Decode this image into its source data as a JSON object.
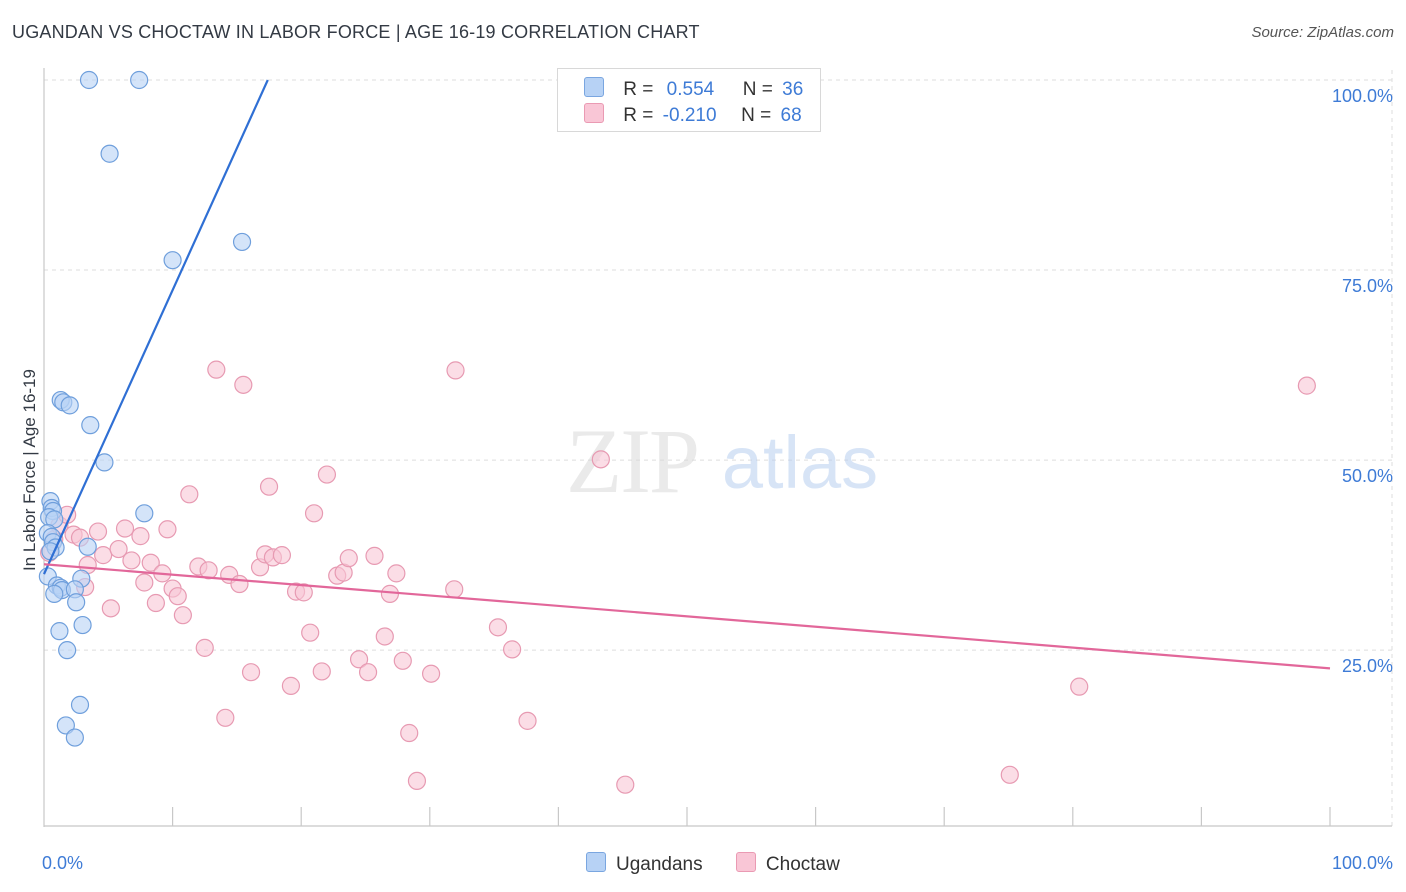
{
  "title": "UGANDAN VS CHOCTAW IN LABOR FORCE | AGE 16-19 CORRELATION CHART",
  "source": "Source: ZipAtlas.com",
  "watermark": {
    "zip": "ZIP",
    "atlas": "atlas"
  },
  "legend_top": {
    "rows": [
      {
        "r_label": "R =",
        "r_value": "0.554",
        "n_label": "N =",
        "n_value": "36"
      },
      {
        "r_label": "R =",
        "r_value": "-0.210",
        "n_label": "N =",
        "n_value": "68"
      }
    ]
  },
  "legend_bottom": [
    "Ugandans",
    "Choctaw"
  ],
  "colors": {
    "blue_fill": "#b7d2f5",
    "blue_stroke": "#6f9fdc",
    "blue_line": "#2f6fd4",
    "pink_fill": "#f9c6d6",
    "pink_stroke": "#e79ab2",
    "pink_line": "#e2679a",
    "grid": "#dddddd",
    "axis_text": "#3e7bd6"
  },
  "chart_data": {
    "type": "scatter",
    "title": "UGANDAN VS CHOCTAW IN LABOR FORCE | AGE 16-19 CORRELATION CHART",
    "xlabel": "",
    "ylabel": "In Labor Force | Age 16-19",
    "xlim": [
      0,
      100
    ],
    "ylim": [
      2,
      100
    ],
    "x_tick_labels": [
      "0.0%",
      "100.0%"
    ],
    "y_ticks": [
      25,
      50,
      75,
      100
    ],
    "y_tick_labels": [
      "25.0%",
      "50.0%",
      "75.0%",
      "100.0%"
    ],
    "series": [
      {
        "name": "Ugandans",
        "R": 0.554,
        "N": 36,
        "trend": {
          "x": [
            0.0,
            17.4
          ],
          "y": [
            35.0,
            100.0
          ]
        },
        "points": [
          [
            3.5,
            100
          ],
          [
            7.4,
            100
          ],
          [
            5.1,
            90.3
          ],
          [
            15.4,
            78.7
          ],
          [
            10.0,
            76.3
          ],
          [
            1.3,
            57.9
          ],
          [
            1.5,
            57.6
          ],
          [
            2.0,
            57.2
          ],
          [
            3.6,
            54.6
          ],
          [
            4.7,
            49.7
          ],
          [
            0.5,
            44.6
          ],
          [
            0.6,
            43.7
          ],
          [
            0.7,
            43.3
          ],
          [
            0.4,
            42.5
          ],
          [
            0.8,
            42.2
          ],
          [
            7.8,
            43.0
          ],
          [
            0.3,
            40.4
          ],
          [
            0.6,
            39.9
          ],
          [
            0.7,
            39.2
          ],
          [
            0.9,
            38.5
          ],
          [
            0.5,
            38.0
          ],
          [
            3.4,
            38.6
          ],
          [
            0.3,
            34.7
          ],
          [
            2.9,
            34.4
          ],
          [
            1.0,
            33.5
          ],
          [
            1.3,
            33.2
          ],
          [
            1.4,
            32.9
          ],
          [
            2.4,
            33.0
          ],
          [
            0.8,
            32.4
          ],
          [
            2.5,
            31.3
          ],
          [
            3.0,
            28.3
          ],
          [
            1.2,
            27.5
          ],
          [
            1.8,
            25.0
          ],
          [
            2.8,
            17.8
          ],
          [
            1.7,
            15.1
          ],
          [
            2.4,
            13.5
          ]
        ]
      },
      {
        "name": "Choctaw",
        "R": -0.21,
        "N": 68,
        "trend": {
          "x": [
            0.0,
            100.0
          ],
          "y": [
            36.3,
            22.6
          ]
        },
        "points": [
          [
            0.4,
            37.8
          ],
          [
            0.8,
            39.6
          ],
          [
            1.2,
            41.4
          ],
          [
            1.8,
            42.8
          ],
          [
            2.3,
            40.2
          ],
          [
            2.8,
            39.8
          ],
          [
            3.4,
            36.2
          ],
          [
            3.2,
            33.3
          ],
          [
            4.2,
            40.6
          ],
          [
            4.6,
            37.5
          ],
          [
            5.2,
            30.5
          ],
          [
            5.8,
            38.3
          ],
          [
            6.3,
            41.0
          ],
          [
            6.8,
            36.8
          ],
          [
            7.5,
            40.0
          ],
          [
            7.8,
            33.9
          ],
          [
            8.3,
            36.5
          ],
          [
            8.7,
            31.2
          ],
          [
            9.2,
            35.1
          ],
          [
            9.6,
            40.9
          ],
          [
            10.0,
            33.1
          ],
          [
            10.4,
            32.1
          ],
          [
            10.8,
            29.6
          ],
          [
            11.3,
            45.5
          ],
          [
            12.0,
            36.0
          ],
          [
            12.5,
            25.3
          ],
          [
            12.8,
            35.5
          ],
          [
            13.4,
            61.9
          ],
          [
            14.1,
            16.1
          ],
          [
            14.4,
            34.9
          ],
          [
            15.2,
            33.7
          ],
          [
            15.5,
            59.9
          ],
          [
            16.1,
            22.1
          ],
          [
            16.8,
            35.9
          ],
          [
            17.2,
            37.6
          ],
          [
            17.5,
            46.5
          ],
          [
            17.8,
            37.2
          ],
          [
            18.5,
            37.5
          ],
          [
            19.2,
            20.3
          ],
          [
            19.6,
            32.7
          ],
          [
            20.2,
            32.6
          ],
          [
            20.7,
            27.3
          ],
          [
            21.0,
            43.0
          ],
          [
            21.6,
            22.2
          ],
          [
            22.0,
            48.1
          ],
          [
            22.8,
            34.8
          ],
          [
            23.3,
            35.2
          ],
          [
            23.7,
            37.1
          ],
          [
            24.5,
            23.8
          ],
          [
            25.2,
            22.1
          ],
          [
            25.7,
            37.4
          ],
          [
            26.5,
            26.8
          ],
          [
            26.9,
            32.4
          ],
          [
            27.4,
            35.1
          ],
          [
            27.9,
            23.6
          ],
          [
            28.4,
            14.1
          ],
          [
            29.0,
            7.8
          ],
          [
            30.1,
            21.9
          ],
          [
            32.0,
            61.8
          ],
          [
            31.9,
            33.0
          ],
          [
            35.3,
            28.0
          ],
          [
            36.4,
            25.1
          ],
          [
            37.6,
            15.7
          ],
          [
            43.3,
            50.1
          ],
          [
            45.2,
            7.3
          ],
          [
            75.1,
            8.6
          ],
          [
            80.5,
            20.2
          ],
          [
            98.2,
            59.8
          ]
        ]
      }
    ]
  }
}
